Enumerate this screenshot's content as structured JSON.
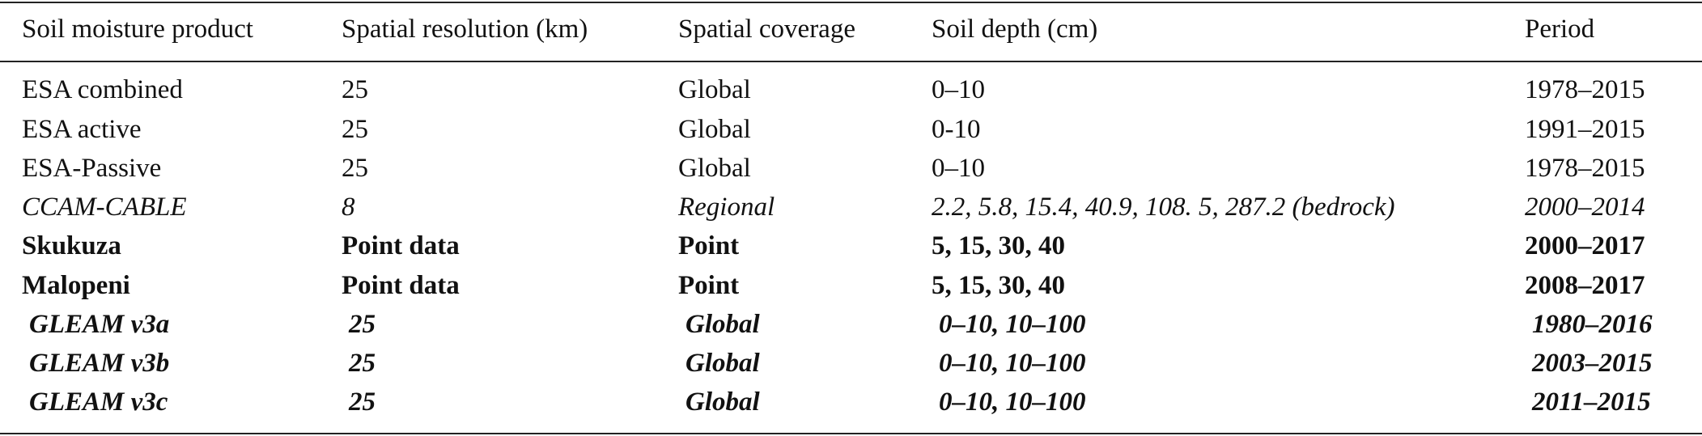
{
  "table": {
    "header": [
      "Soil moisture product",
      "Spatial resolution (km)",
      "Spatial coverage",
      "Soil depth (cm)",
      "Period"
    ],
    "rows": [
      [
        "ESA combined",
        "25",
        "Global",
        "0–10",
        "1978–2015"
      ],
      [
        "ESA active",
        "25",
        "Global",
        "0-10",
        "1991–2015"
      ],
      [
        "ESA-Passive",
        "25",
        "Global",
        "0–10",
        "1978–2015"
      ],
      [
        "CCAM-CABLE",
        "8",
        "Regional",
        "2.2, 5.8, 15.4, 40.9, 108. 5, 287.2 (bedrock)",
        "2000–2014"
      ],
      [
        "Skukuza",
        "Point data",
        "Point",
        "5, 15, 30, 40",
        "2000–2017"
      ],
      [
        "Malopeni",
        "Point data",
        "Point",
        "5, 15, 30, 40",
        "2008–2017"
      ],
      [
        "GLEAM v3a",
        "25",
        "Global",
        "0–10, 10–100",
        "1980–2016"
      ],
      [
        "GLEAM v3b",
        "25",
        "Global",
        "0–10, 10–100",
        "2003–2015"
      ],
      [
        "GLEAM v3c",
        "25",
        "Global",
        "0–10, 10–100",
        "2011–2015"
      ]
    ]
  }
}
